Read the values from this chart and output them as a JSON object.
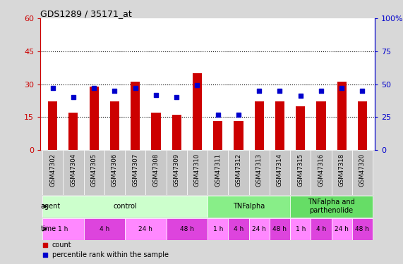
{
  "title": "GDS1289 / 35171_at",
  "samples": [
    "GSM47302",
    "GSM47304",
    "GSM47305",
    "GSM47306",
    "GSM47307",
    "GSM47308",
    "GSM47309",
    "GSM47310",
    "GSM47311",
    "GSM47312",
    "GSM47313",
    "GSM47314",
    "GSM47315",
    "GSM47316",
    "GSM47318",
    "GSM47320"
  ],
  "count_values": [
    22,
    17,
    29,
    22,
    31,
    17,
    16,
    35,
    13,
    13,
    22,
    22,
    20,
    22,
    31,
    22
  ],
  "percentile_values": [
    47,
    40,
    47,
    45,
    47,
    42,
    40,
    49,
    27,
    27,
    45,
    45,
    41,
    45,
    47,
    45
  ],
  "left_ylim": [
    0,
    60
  ],
  "right_ylim": [
    0,
    100
  ],
  "left_yticks": [
    0,
    15,
    30,
    45,
    60
  ],
  "right_yticks": [
    0,
    25,
    50,
    75,
    100
  ],
  "left_ytick_labels": [
    "0",
    "15",
    "30",
    "45",
    "60"
  ],
  "right_ytick_labels": [
    "0",
    "25",
    "50",
    "75",
    "100%"
  ],
  "bar_color": "#cc0000",
  "blue_color": "#0000cc",
  "agent_groups": [
    {
      "label": "control",
      "start": 0,
      "end": 8,
      "color": "#ccffcc"
    },
    {
      "label": "TNFalpha",
      "start": 8,
      "end": 12,
      "color": "#88ee88"
    },
    {
      "label": "TNFalpha and\nparthenolide",
      "start": 12,
      "end": 16,
      "color": "#66dd66"
    }
  ],
  "time_groups": [
    {
      "label": "1 h",
      "start": 0,
      "end": 2,
      "color": "#ff88ff"
    },
    {
      "label": "4 h",
      "start": 2,
      "end": 4,
      "color": "#dd44dd"
    },
    {
      "label": "24 h",
      "start": 4,
      "end": 6,
      "color": "#ff88ff"
    },
    {
      "label": "48 h",
      "start": 6,
      "end": 8,
      "color": "#dd44dd"
    },
    {
      "label": "1 h",
      "start": 8,
      "end": 9,
      "color": "#ff88ff"
    },
    {
      "label": "4 h",
      "start": 9,
      "end": 10,
      "color": "#dd44dd"
    },
    {
      "label": "24 h",
      "start": 10,
      "end": 11,
      "color": "#ff88ff"
    },
    {
      "label": "48 h",
      "start": 11,
      "end": 12,
      "color": "#dd44dd"
    },
    {
      "label": "1 h",
      "start": 12,
      "end": 13,
      "color": "#ff88ff"
    },
    {
      "label": "4 h",
      "start": 13,
      "end": 14,
      "color": "#dd44dd"
    },
    {
      "label": "24 h",
      "start": 14,
      "end": 15,
      "color": "#ff88ff"
    },
    {
      "label": "48 h",
      "start": 15,
      "end": 16,
      "color": "#dd44dd"
    }
  ],
  "legend_count_color": "#cc0000",
  "legend_pct_color": "#0000cc",
  "bg_color": "#d8d8d8",
  "plot_bg": "#ffffff",
  "tick_label_bg": "#c8c8c8",
  "bar_width": 0.45
}
